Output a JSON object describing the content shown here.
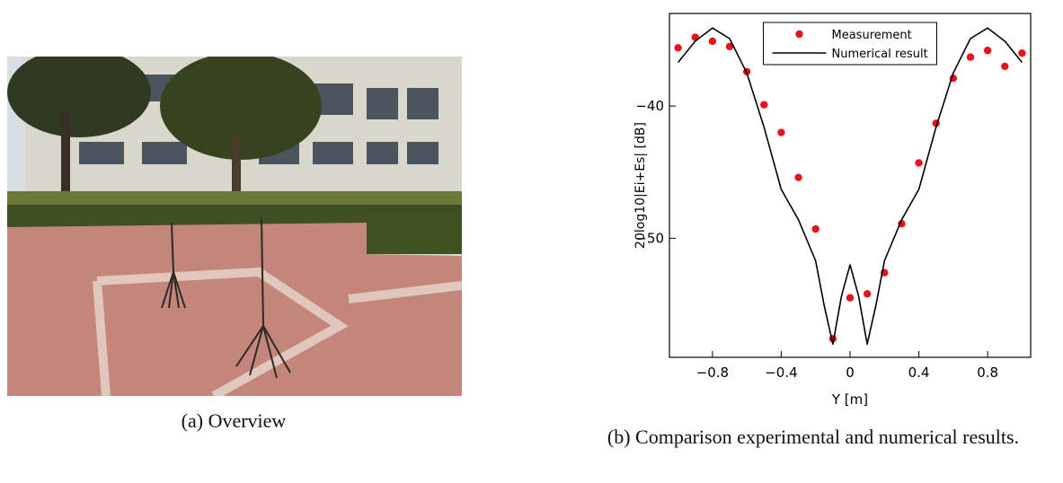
{
  "captions": [
    "(a) Overview",
    "(b) Comparison experimental and numerical results."
  ],
  "chart_data": {
    "type": "line",
    "x_label": "Y [m]",
    "y_label": "20log10|Ei+Es| [dB]",
    "xlim": [
      -1.05,
      1.05
    ],
    "ylim": [
      -59,
      -33
    ],
    "xticks": [
      {
        "value": -0.8,
        "label": "−0.8"
      },
      {
        "value": -0.4,
        "label": "−0.4"
      },
      0,
      {
        "value": 0.4,
        "label": "0.4"
      },
      {
        "value": 0.8,
        "label": "0.8"
      }
    ],
    "yticks": [
      {
        "value": -40,
        "label": "−40"
      },
      {
        "value": -50,
        "label": "−50"
      }
    ],
    "legend": "upper center",
    "series": [
      {
        "name": "Measurement",
        "color": "#e8141c",
        "style": "markers",
        "x": [
          -1.0,
          -0.9,
          -0.8,
          -0.7,
          -0.6,
          -0.5,
          -0.4,
          -0.3,
          -0.2,
          -0.1,
          0,
          0.1,
          0.2,
          0.3,
          0.4,
          0.5,
          0.6,
          0.7,
          0.8,
          0.9,
          1.0
        ],
        "values": [
          -35.6,
          -34.8,
          -35.1,
          -35.5,
          -37.4,
          -39.9,
          -42.0,
          -45.4,
          -49.3,
          -57.6,
          -54.5,
          -54.2,
          -52.6,
          -48.9,
          -44.3,
          -41.3,
          -37.9,
          -36.3,
          -35.8,
          -37.0,
          -36.0
        ]
      },
      {
        "name": "Numerical result",
        "color": "#000000",
        "style": "line",
        "x": [
          -1.0,
          -0.9,
          -0.8,
          -0.7,
          -0.6,
          -0.5,
          -0.4,
          -0.3,
          -0.2,
          -0.15,
          -0.1,
          -0.05,
          0,
          0.05,
          0.1,
          0.15,
          0.2,
          0.3,
          0.4,
          0.5,
          0.6,
          0.7,
          0.8,
          0.9,
          1.0
        ],
        "values": [
          -36.7,
          -35.1,
          -34.1,
          -34.9,
          -37.5,
          -41.6,
          -46.3,
          -48.6,
          -51.7,
          -55.1,
          -58.0,
          -54.4,
          -52.0,
          -54.4,
          -58.0,
          -55.1,
          -51.7,
          -48.6,
          -46.3,
          -41.6,
          -37.5,
          -34.9,
          -34.1,
          -35.1,
          -36.7
        ]
      }
    ]
  }
}
